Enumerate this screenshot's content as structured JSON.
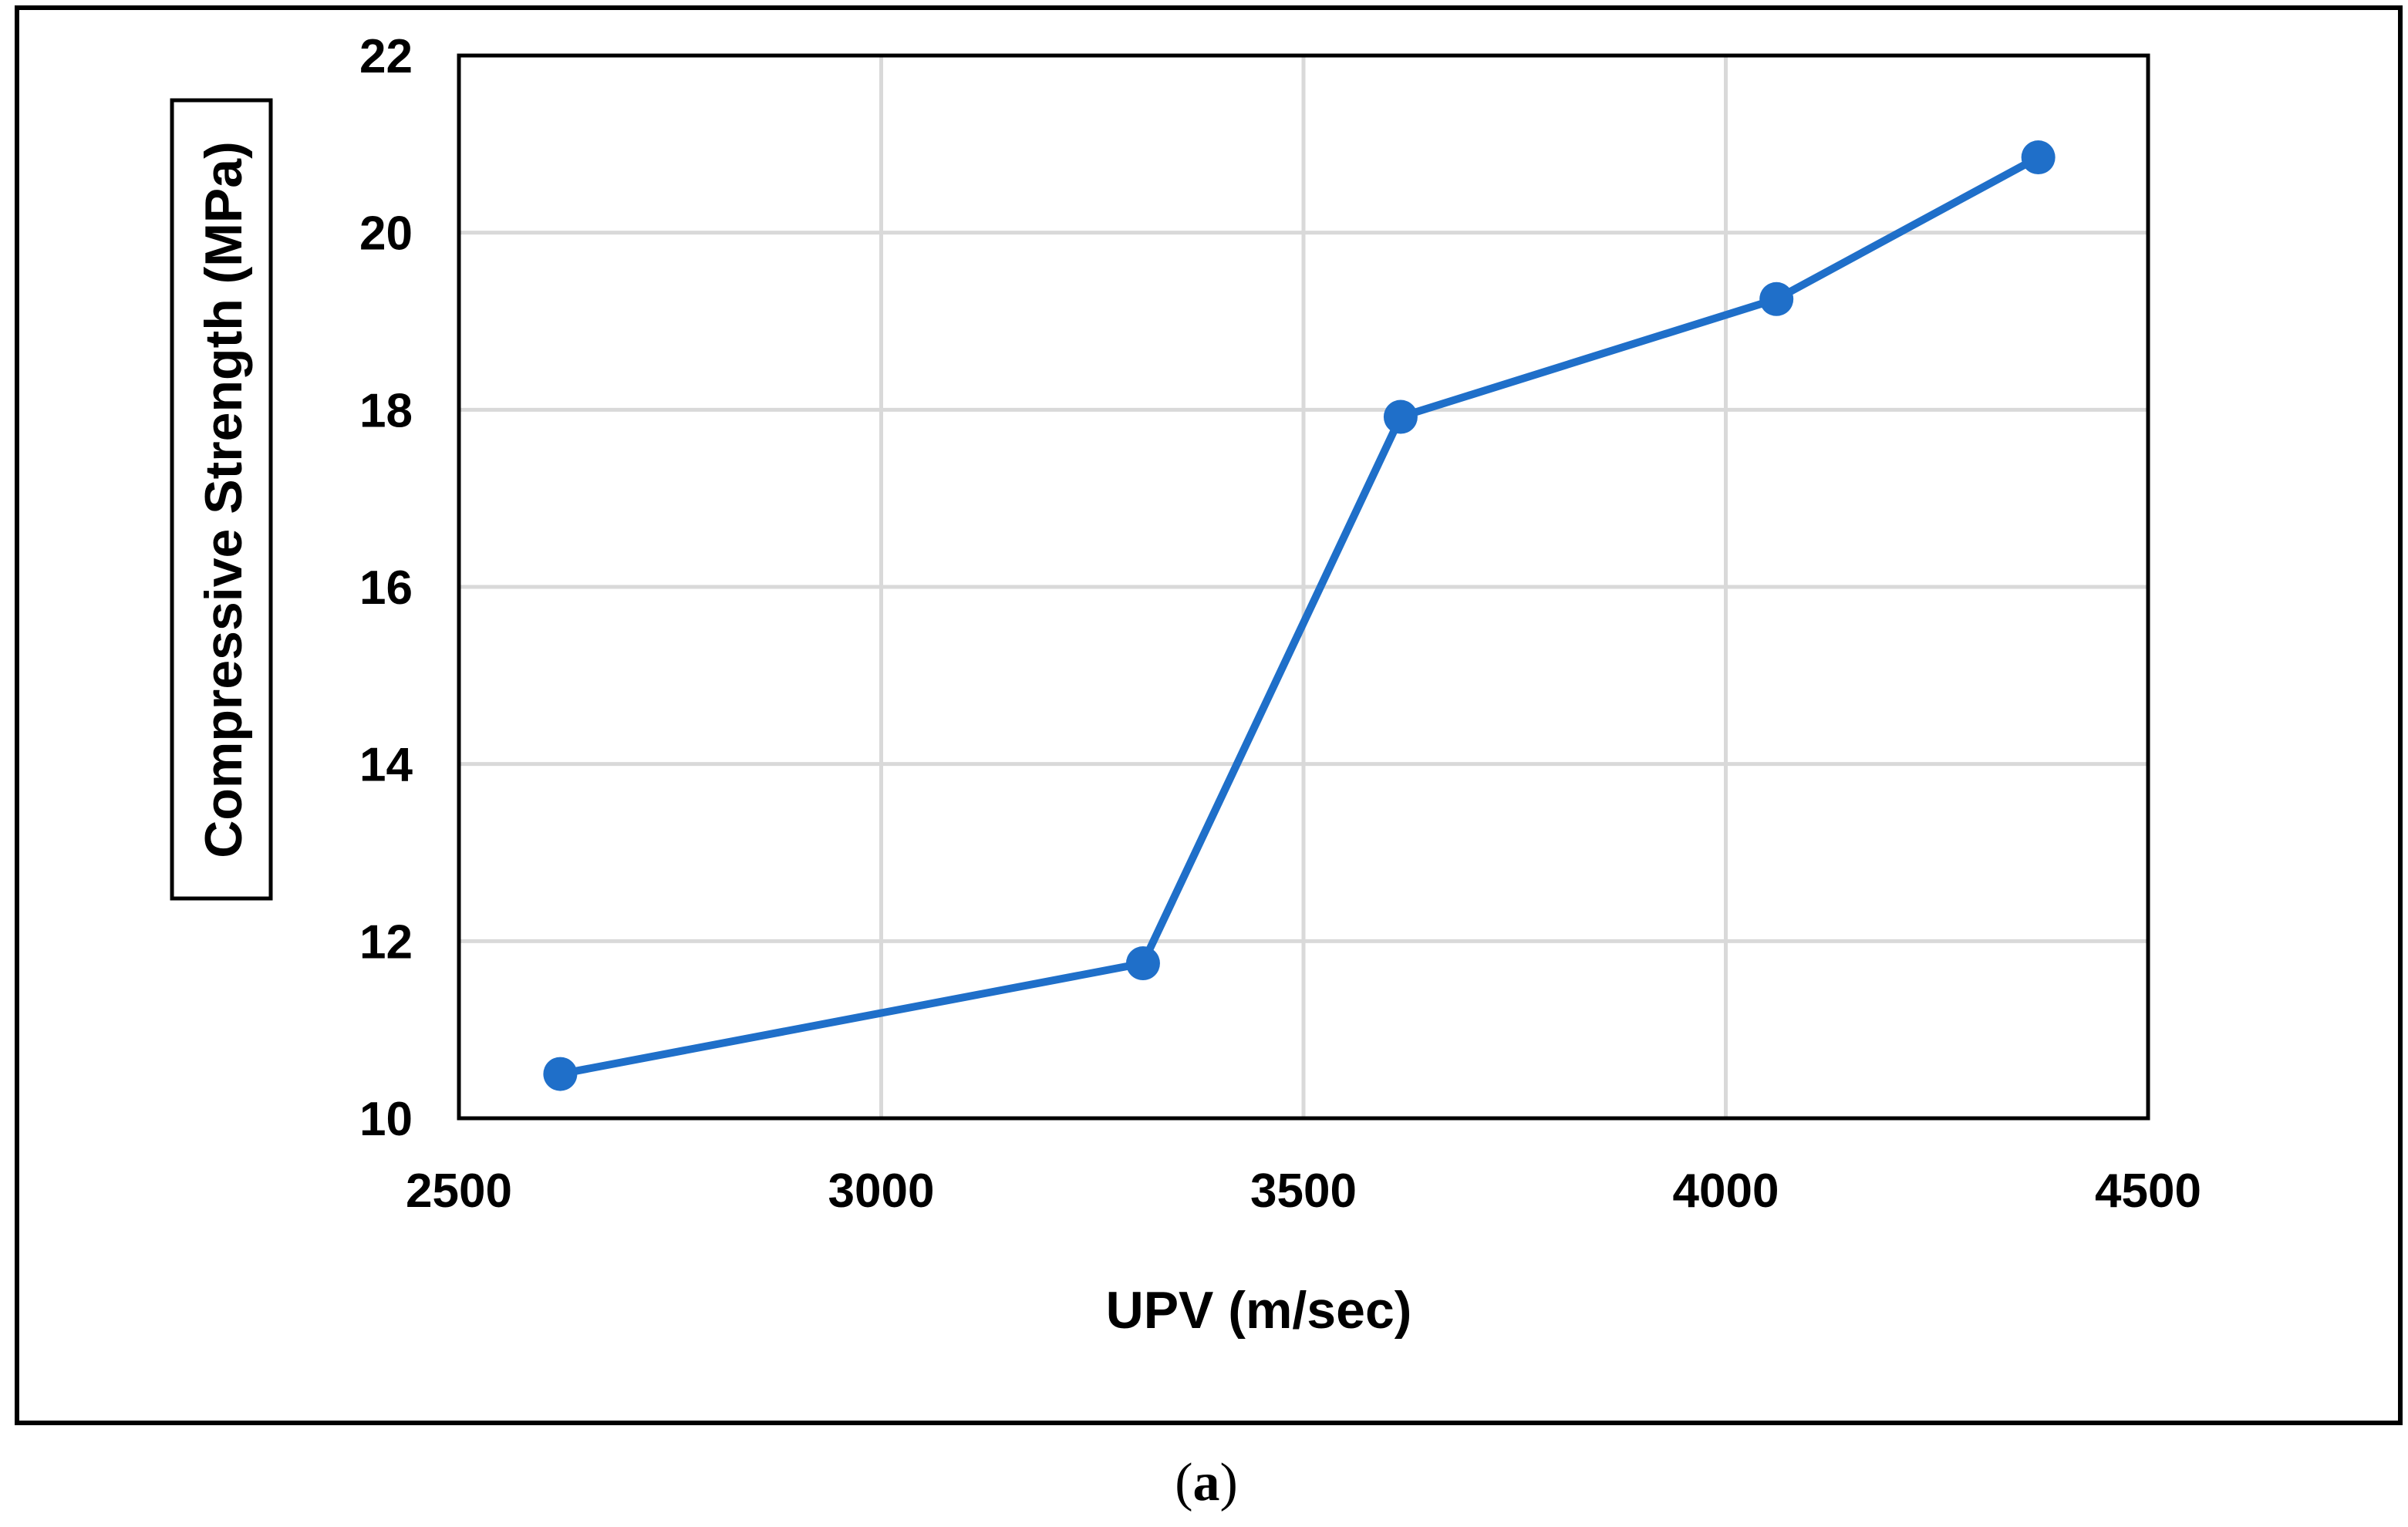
{
  "chart_data": {
    "type": "line",
    "title": "",
    "xlabel": "UPV (m/sec)",
    "ylabel": "Compressive Strength (MPa)",
    "xlim": [
      2500,
      4500
    ],
    "ylim": [
      10,
      22
    ],
    "xticks": [
      2500,
      3000,
      3500,
      4000,
      4500
    ],
    "yticks": [
      10,
      12,
      14,
      16,
      18,
      20,
      22
    ],
    "grid": true,
    "series": [
      {
        "color": "#1f6fc9",
        "markers": true,
        "points": [
          {
            "x": 2620,
            "y": 10.5
          },
          {
            "x": 3310,
            "y": 11.75
          },
          {
            "x": 3615,
            "y": 17.92
          },
          {
            "x": 4060,
            "y": 19.25
          },
          {
            "x": 4370,
            "y": 20.85
          }
        ]
      }
    ]
  },
  "caption": {
    "open": "(",
    "letter": "a",
    "close": ")"
  },
  "colors": {
    "series": "#1f6fc9",
    "grid": "#d9d9d9",
    "frame": "#000000"
  }
}
